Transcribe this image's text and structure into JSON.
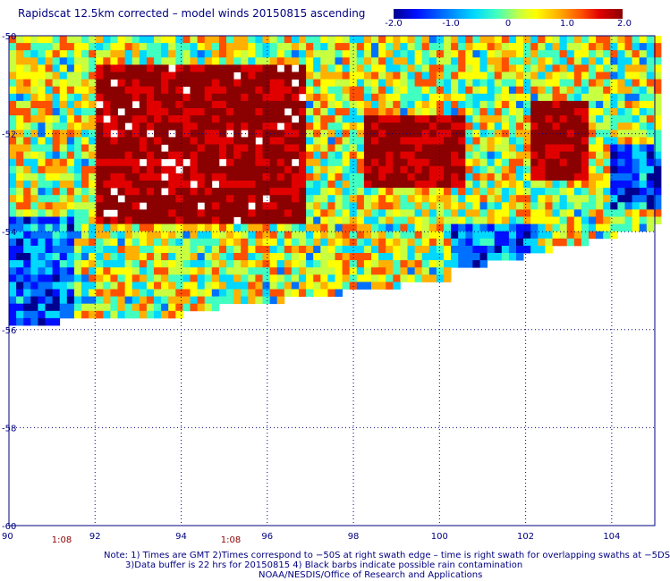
{
  "title": "Rapidscat 12.5km corrected – model winds 20150815 ascending",
  "colorbar": {
    "labels": [
      "-2.0",
      "-1.0",
      "0",
      "1.0",
      "2.0"
    ],
    "min": -2.0,
    "max": 2.0,
    "colors": [
      "#000090",
      "#0010ff",
      "#0070ff",
      "#00d8ff",
      "#40ffc0",
      "#c8ff40",
      "#ffff00",
      "#ffb000",
      "#ff5000",
      "#e00000",
      "#8b0000"
    ]
  },
  "map": {
    "lon_ticks": [
      "90",
      "92",
      "94",
      "96",
      "98",
      "100",
      "102",
      "104"
    ],
    "lat_ticks": [
      "-50",
      "-52",
      "-54",
      "-56",
      "-58",
      "-60"
    ],
    "lon_range": [
      90,
      105
    ],
    "lat_range": [
      -60,
      -50
    ],
    "time_labels": [
      {
        "text": "1:08",
        "lon": 91.3
      },
      {
        "text": "1:08",
        "lon": 95.2
      }
    ]
  },
  "notes": {
    "line1": "Note: 1) Times are GMT 2)Times correspond to −50S at right swath edge – time is right swath for overlapping swaths at −5DS",
    "line2": "3)Data buffer is 22 hrs for 20150815 4) Black barbs indicate possible rain contamination",
    "line3": "NOAA/NESDIS/Office of Research and Applications"
  }
}
